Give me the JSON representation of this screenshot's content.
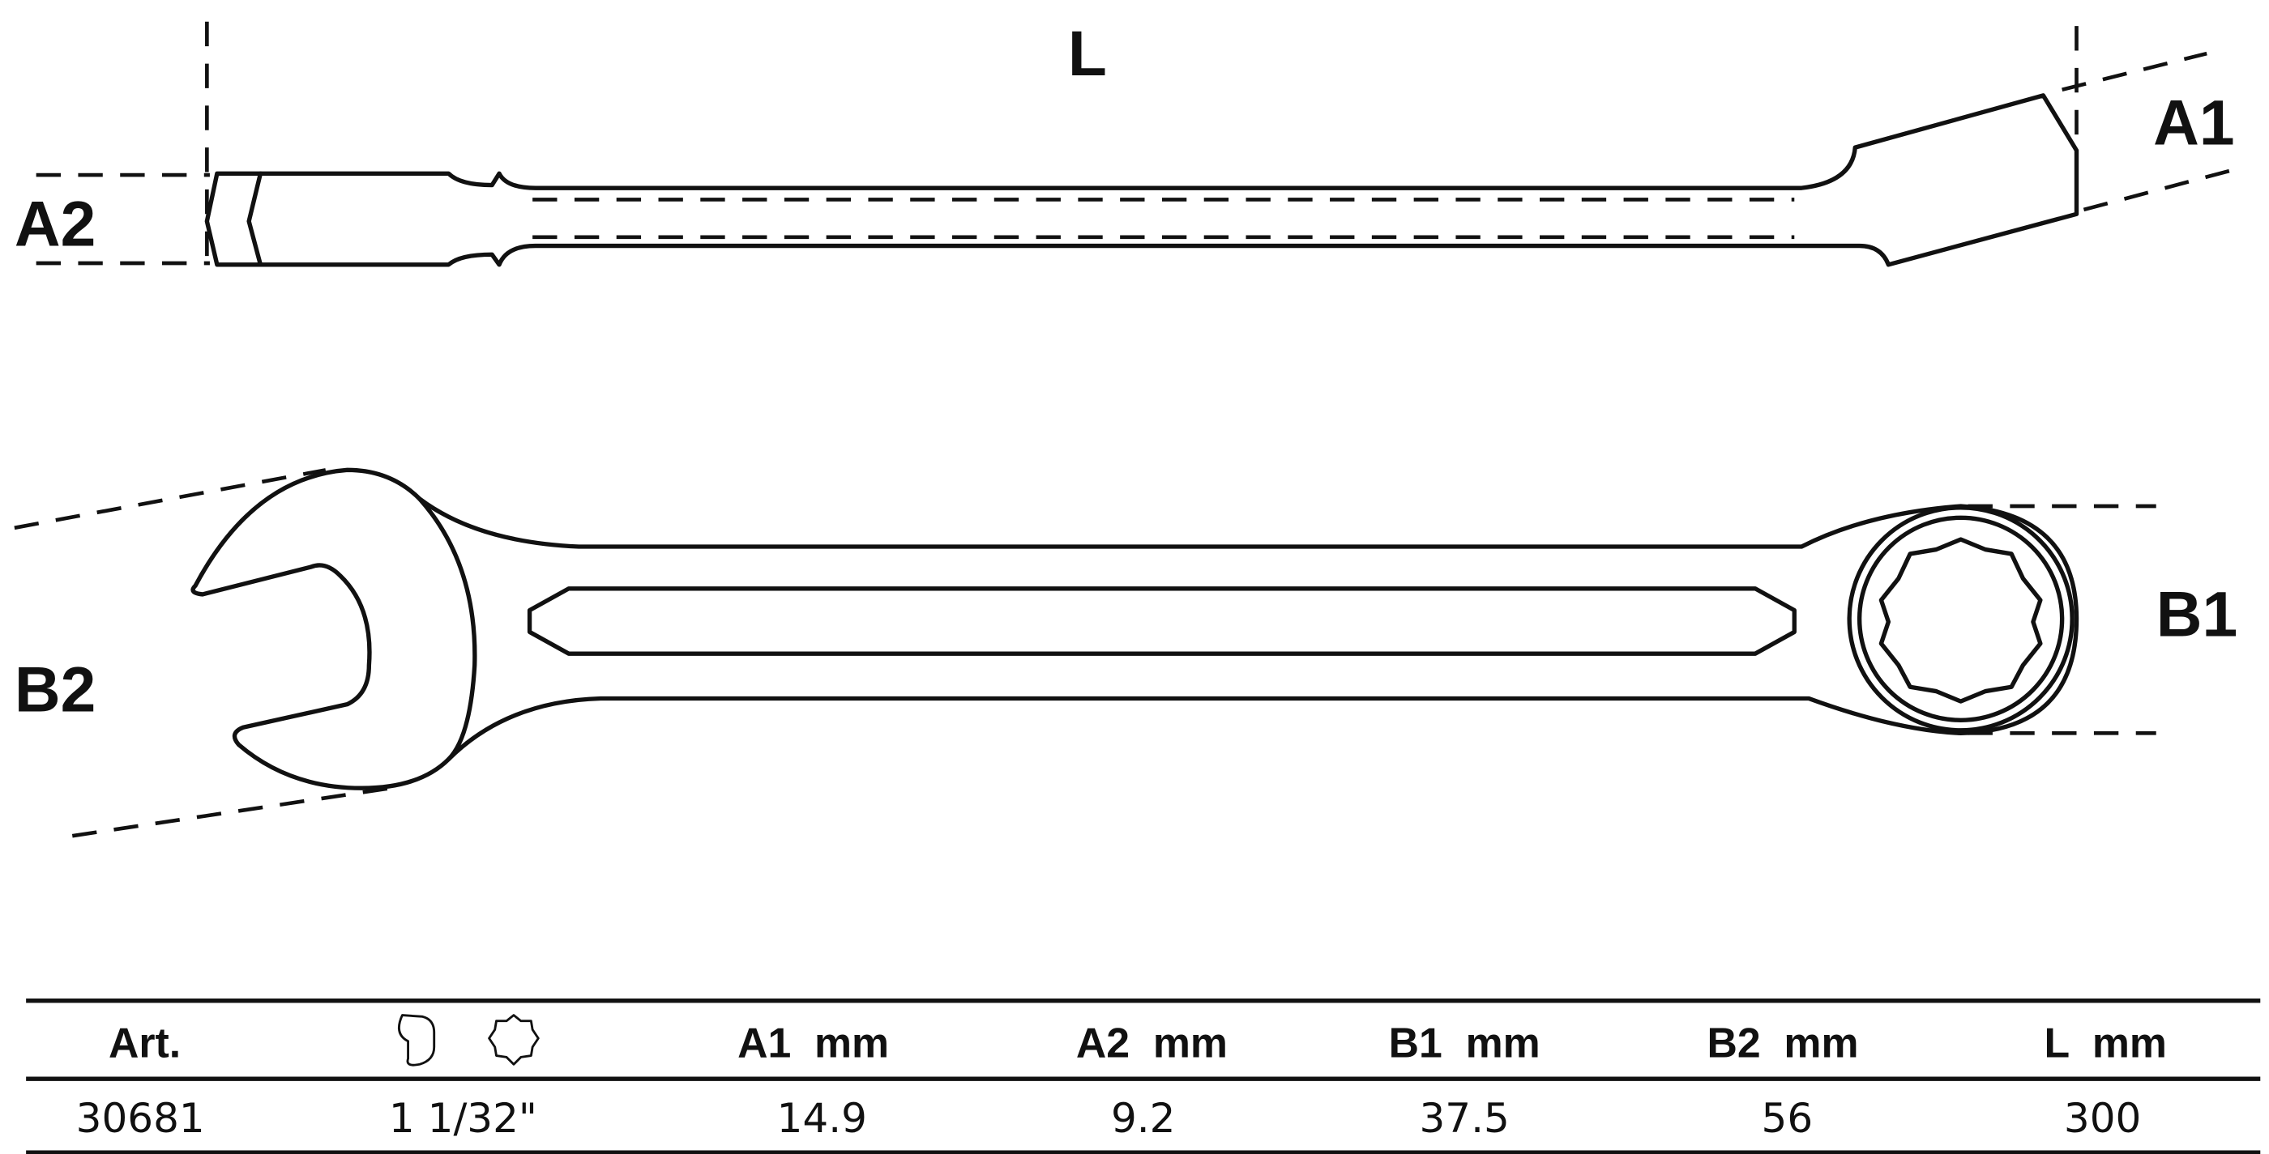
{
  "drawing": {
    "labels": {
      "L": "L",
      "A1": "A1",
      "A2": "A2",
      "B1": "B1",
      "B2": "B2"
    }
  },
  "table": {
    "headers": [
      "Art.",
      "wrench-size-icon",
      "A1  mm",
      "A2  mm",
      "B1  mm",
      "B2  mm",
      "L  mm"
    ],
    "rows": [
      [
        "30681",
        "1 1/32\"",
        "14.9",
        "9.2",
        "37.5",
        "56",
        "300"
      ]
    ]
  }
}
